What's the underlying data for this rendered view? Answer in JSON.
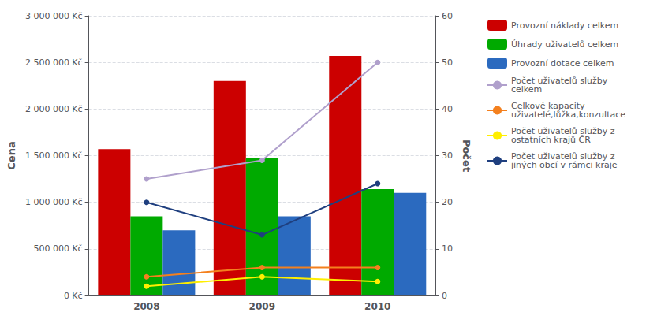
{
  "chart_data": {
    "type": "bar",
    "categories": [
      "2008",
      "2009",
      "2010"
    ],
    "ylabel": "Cena",
    "y2label": "Počet",
    "ylim": [
      0,
      3000000
    ],
    "yticks": [
      {
        "value": 0,
        "label": "0 Kč"
      },
      {
        "value": 500000,
        "label": "500 000 Kč"
      },
      {
        "value": 1000000,
        "label": "1 000 000 Kč"
      },
      {
        "value": 1500000,
        "label": "1 500 000 Kč"
      },
      {
        "value": 2000000,
        "label": "2 000 000 Kč"
      },
      {
        "value": 2500000,
        "label": "2 500 000 Kč"
      },
      {
        "value": 3000000,
        "label": "3 000 000 Kč"
      }
    ],
    "y2lim": [
      0,
      60
    ],
    "y2ticks": [
      0,
      10,
      20,
      30,
      40,
      50,
      60
    ],
    "grid": true,
    "legend": "right",
    "series": [
      {
        "name": "Provozní náklady celkem",
        "type": "bar",
        "color": "#cc0000",
        "values": [
          1570000,
          2300000,
          2570000
        ]
      },
      {
        "name": "Úhrady uživatelů celkem",
        "type": "bar",
        "color": "#00aa00",
        "values": [
          850000,
          1470000,
          1140000
        ]
      },
      {
        "name": "Provozní dotace celkem",
        "type": "bar",
        "color": "#2b6abf",
        "values": [
          700000,
          850000,
          1100000
        ]
      },
      {
        "name": "Počet uživatelů služby\ncelkem",
        "type": "line",
        "axis": "y2",
        "marker": "circle",
        "color": "#b0a0cc",
        "values": [
          25,
          29,
          50
        ]
      },
      {
        "name": "Celkové kapacity\nuživatelé,lůžka,konzultace",
        "type": "line",
        "axis": "y2",
        "marker": "circle",
        "color": "#f4801e",
        "values": [
          4,
          6,
          6
        ]
      },
      {
        "name": "Počet uživatelů služby z\nostatních krajů ČR",
        "type": "line",
        "axis": "y2",
        "marker": "circle",
        "color": "#ffee00",
        "values": [
          2,
          4,
          3
        ]
      },
      {
        "name": "Počet uživatelů služby z\njiných obcí v rámci kraje",
        "type": "line",
        "axis": "y2",
        "marker": "circle",
        "color": "#1f3f7f",
        "values": [
          20,
          13,
          24
        ]
      }
    ]
  }
}
